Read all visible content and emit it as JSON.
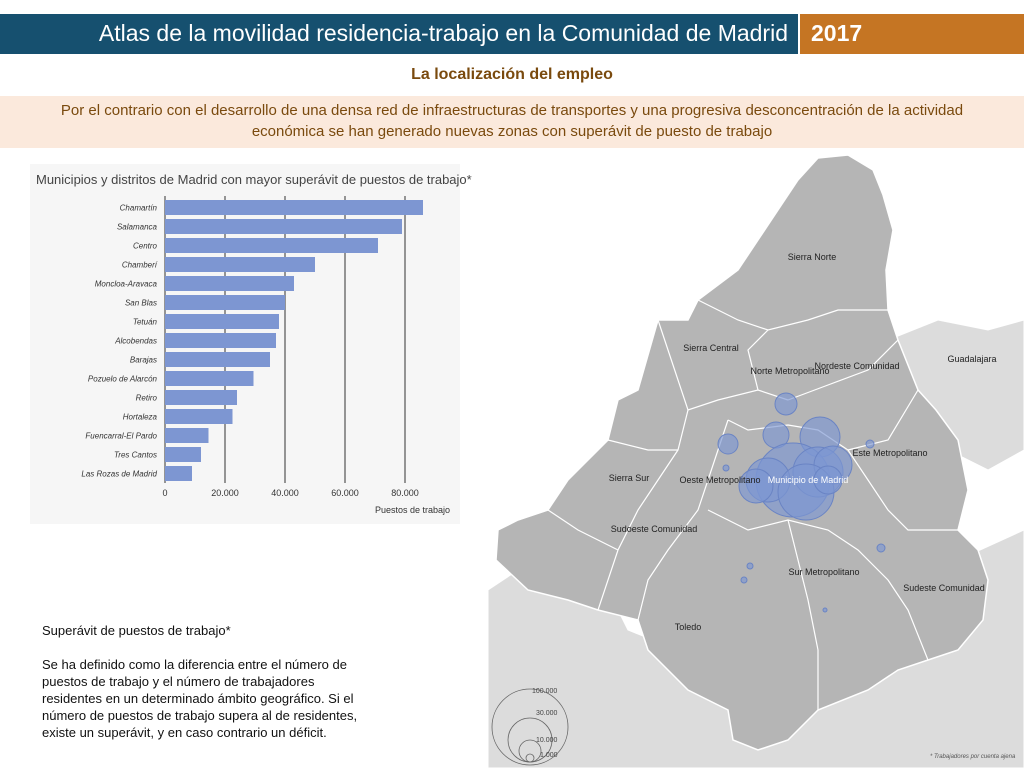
{
  "header": {
    "title": "Atlas de la movilidad residencia-trabajo en la Comunidad de Madrid",
    "year": "2017",
    "title_color": "#16506f",
    "year_color": "#c57523"
  },
  "subtitle": "La localización del empleo",
  "intro": "Por el contrario con el desarrollo de una densa red de infraestructuras de transportes y una progresiva desconcentración de la actividad económica se han generado nuevas zonas con superávit de puesto de trabajo",
  "chart_data": {
    "type": "bar",
    "orientation": "horizontal",
    "title": "Municipios y distritos de Madrid con mayor superávit de puestos de trabajo*",
    "xlabel": "Puestos de trabajo",
    "ylabel": "",
    "xlim": [
      0,
      90000
    ],
    "x_ticks": [
      0,
      20000,
      40000,
      60000,
      80000
    ],
    "x_tick_labels": [
      "0",
      "20.000",
      "40.000",
      "60.000",
      "80.000"
    ],
    "grid": "vertical",
    "bar_color": "#7d96d2",
    "categories": [
      "Chamartín",
      "Salamanca",
      "Centro",
      "Chamberí",
      "Moncloa-Aravaca",
      "San Blas",
      "Tetuán",
      "Alcobendas",
      "Barajas",
      "Pozuelo de Alarcón",
      "Retiro",
      "Hortaleza",
      "Fuencarral-El Pardo",
      "Tres Cantos",
      "Las Rozas de Madrid"
    ],
    "values": [
      86000,
      79000,
      71000,
      50000,
      43000,
      40000,
      38000,
      37000,
      35000,
      29500,
      24000,
      22500,
      14500,
      12000,
      9000
    ]
  },
  "map": {
    "regions": [
      "Sierra Norte",
      "Sierra Central",
      "Norte Metropolitano",
      "Nordeste Comunidad",
      "Guadalajara",
      "Este Metropolitano",
      "Municipio de Madrid",
      "Oeste Metropolitano",
      "Sierra Sur",
      "Sudoeste Comunidad",
      "Sur Metropolitano",
      "Sudeste Comunidad",
      "Toledo"
    ],
    "legend_values": [
      "100.000",
      "30.000",
      "10.000",
      "1.000"
    ],
    "region_color": "#b5b5b5",
    "outside_color": "#dcdcdc",
    "bubble_color": "#7d96d2"
  },
  "note": {
    "heading": "Superávit de puestos de trabajo*",
    "body": "Se ha definido como la diferencia entre el número de puestos de trabajo y el número de trabajadores residentes  en un determinado ámbito geográfico. Si el número de puestos de trabajo supera al de residentes, existe un superávit, y en caso contrario un déficit."
  },
  "footnote": "* Trabajadores por cuenta ajena"
}
